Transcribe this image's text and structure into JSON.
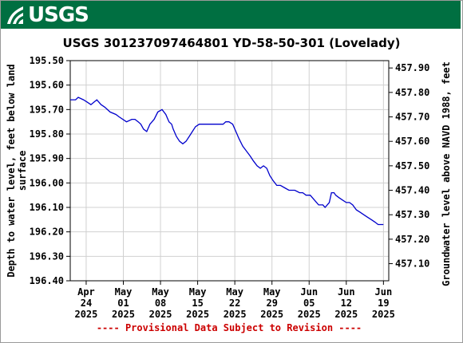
{
  "header": {
    "logo_text": "USGS",
    "logo_color": "#ffffff",
    "banner_color": "#006f41"
  },
  "chart_data": {
    "type": "line",
    "title": "USGS 301237097464801 YD-58-50-301 (Lovelady)",
    "ylabel_left_line1": "Depth to water level, feet below land",
    "ylabel_left_line2": "surface",
    "ylabel_right": "Groundwater level above NAVD 1988, feet",
    "ylim_left": [
      195.5,
      196.4
    ],
    "ylim_right_top": 457.93,
    "left_inverted": true,
    "left_ticks": [
      "195.50",
      "195.60",
      "195.70",
      "195.80",
      "195.90",
      "196.00",
      "196.10",
      "196.20",
      "196.30",
      "196.40"
    ],
    "right_ticks": [
      "457.90",
      "457.80",
      "457.70",
      "457.60",
      "457.50",
      "457.40",
      "457.30",
      "457.20",
      "457.10"
    ],
    "x_ticks": [
      {
        "day": 21,
        "month": "Apr",
        "date": "24",
        "year": "2025"
      },
      {
        "day": 28,
        "month": "May",
        "date": "01",
        "year": "2025"
      },
      {
        "day": 35,
        "month": "May",
        "date": "08",
        "year": "2025"
      },
      {
        "day": 42,
        "month": "May",
        "date": "15",
        "year": "2025"
      },
      {
        "day": 49,
        "month": "May",
        "date": "22",
        "year": "2025"
      },
      {
        "day": 56,
        "month": "May",
        "date": "29",
        "year": "2025"
      },
      {
        "day": 63,
        "month": "Jun",
        "date": "05",
        "year": "2025"
      },
      {
        "day": 70,
        "month": "Jun",
        "date": "12",
        "year": "2025"
      },
      {
        "day": 77,
        "month": "Jun",
        "date": "19",
        "year": "2025"
      }
    ],
    "xlim_days": [
      18,
      78
    ],
    "grid": true,
    "line_color": "#0000cc",
    "series": [
      {
        "x": [
          18.0,
          19.0,
          19.5,
          20.5,
          21.2,
          21.9,
          23.0,
          23.8,
          24.5,
          25.5,
          26.6,
          27.2,
          28.6,
          29.6,
          30.2,
          30.8,
          31.3,
          31.8,
          32.4,
          33.0,
          33.8,
          34.5,
          35.3,
          36.0,
          36.6,
          37.1,
          37.4,
          38.0,
          38.6,
          39.2,
          39.8,
          40.4,
          41.0,
          41.6,
          42.3,
          43.0,
          44.6,
          45.3,
          46.0,
          46.8,
          47.3,
          47.9,
          48.6,
          49.2,
          49.8,
          50.5,
          51.2,
          51.9,
          52.5,
          53.2,
          53.8,
          54.4,
          55.0,
          55.6,
          56.2,
          56.9,
          57.6,
          58.4,
          59.2,
          60.3,
          61.2,
          61.8,
          62.4,
          63.2,
          64.0,
          64.8,
          65.2,
          65.6,
          66.0,
          66.4,
          66.8,
          67.2,
          67.7,
          68.0,
          68.6,
          69.3,
          70.0,
          70.6,
          71.2,
          71.9,
          72.6,
          73.3,
          74.0,
          74.7,
          75.4,
          76.0,
          76.5,
          77.0
        ],
        "y": [
          195.66,
          195.66,
          195.65,
          195.66,
          195.67,
          195.68,
          195.66,
          195.68,
          195.69,
          195.71,
          195.72,
          195.73,
          195.75,
          195.74,
          195.74,
          195.75,
          195.76,
          195.78,
          195.79,
          195.76,
          195.74,
          195.71,
          195.7,
          195.72,
          195.75,
          195.76,
          195.78,
          195.81,
          195.83,
          195.84,
          195.83,
          195.81,
          195.79,
          195.77,
          195.76,
          195.76,
          195.76,
          195.76,
          195.76,
          195.76,
          195.75,
          195.75,
          195.76,
          195.79,
          195.82,
          195.85,
          195.87,
          195.89,
          195.91,
          195.93,
          195.94,
          195.93,
          195.94,
          195.97,
          195.99,
          196.01,
          196.01,
          196.02,
          196.03,
          196.03,
          196.04,
          196.04,
          196.05,
          196.05,
          196.07,
          196.09,
          196.09,
          196.09,
          196.1,
          196.09,
          196.08,
          196.04,
          196.04,
          196.05,
          196.06,
          196.07,
          196.08,
          196.08,
          196.09,
          196.11,
          196.12,
          196.13,
          196.14,
          196.15,
          196.16,
          196.17,
          196.17,
          196.17
        ]
      }
    ]
  },
  "footer": {
    "provisional_text": "---- Provisional Data Subject to Revision ----",
    "provisional_color": "#cc0000"
  }
}
